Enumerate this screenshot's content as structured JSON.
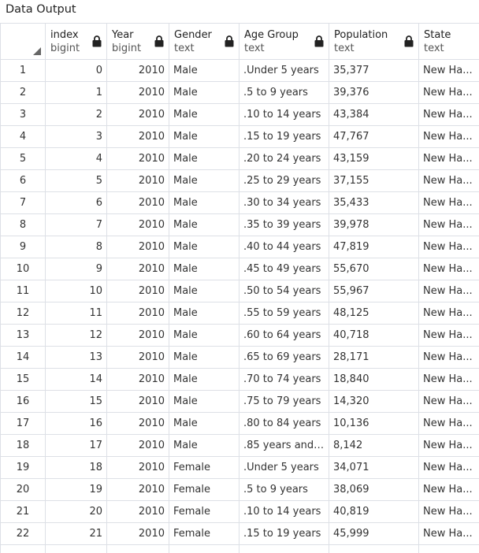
{
  "panel": {
    "title": "Data Output"
  },
  "columns": [
    {
      "name": "index",
      "type": "bigint"
    },
    {
      "name": "Year",
      "type": "bigint"
    },
    {
      "name": "Gender",
      "type": "text"
    },
    {
      "name": "Age Group",
      "type": "text"
    },
    {
      "name": "Population",
      "type": "text"
    },
    {
      "name": "State",
      "type": "text"
    }
  ],
  "rows": [
    [
      "1",
      "0",
      "2010",
      "Male",
      ".Under 5 years",
      "35,377",
      "New Ha..."
    ],
    [
      "2",
      "1",
      "2010",
      "Male",
      ".5 to 9 years",
      "39,376",
      "New Ha..."
    ],
    [
      "3",
      "2",
      "2010",
      "Male",
      ".10 to 14 years",
      "43,384",
      "New Ha..."
    ],
    [
      "4",
      "3",
      "2010",
      "Male",
      ".15 to 19 years",
      "47,767",
      "New Ha..."
    ],
    [
      "5",
      "4",
      "2010",
      "Male",
      ".20 to 24 years",
      "43,159",
      "New Ha..."
    ],
    [
      "6",
      "5",
      "2010",
      "Male",
      ".25 to 29 years",
      "37,155",
      "New Ha..."
    ],
    [
      "7",
      "6",
      "2010",
      "Male",
      ".30 to 34 years",
      "35,433",
      "New Ha..."
    ],
    [
      "8",
      "7",
      "2010",
      "Male",
      ".35 to 39 years",
      "39,978",
      "New Ha..."
    ],
    [
      "9",
      "8",
      "2010",
      "Male",
      ".40 to 44 years",
      "47,819",
      "New Ha..."
    ],
    [
      "10",
      "9",
      "2010",
      "Male",
      ".45 to 49 years",
      "55,670",
      "New Ha..."
    ],
    [
      "11",
      "10",
      "2010",
      "Male",
      ".50 to 54 years",
      "55,967",
      "New Ha..."
    ],
    [
      "12",
      "11",
      "2010",
      "Male",
      ".55 to 59 years",
      "48,125",
      "New Ha..."
    ],
    [
      "13",
      "12",
      "2010",
      "Male",
      ".60 to 64 years",
      "40,718",
      "New Ha..."
    ],
    [
      "14",
      "13",
      "2010",
      "Male",
      ".65 to 69 years",
      "28,171",
      "New Ha..."
    ],
    [
      "15",
      "14",
      "2010",
      "Male",
      ".70 to 74 years",
      "18,840",
      "New Ha..."
    ],
    [
      "16",
      "15",
      "2010",
      "Male",
      ".75 to 79 years",
      "14,320",
      "New Ha..."
    ],
    [
      "17",
      "16",
      "2010",
      "Male",
      ".80 to 84 years",
      "10,136",
      "New Ha..."
    ],
    [
      "18",
      "17",
      "2010",
      "Male",
      ".85 years and o...",
      "8,142",
      "New Ha..."
    ],
    [
      "19",
      "18",
      "2010",
      "Female",
      ".Under 5 years",
      "34,071",
      "New Ha..."
    ],
    [
      "20",
      "19",
      "2010",
      "Female",
      ".5 to 9 years",
      "38,069",
      "New Ha..."
    ],
    [
      "21",
      "20",
      "2010",
      "Female",
      ".10 to 14 years",
      "40,819",
      "New Ha..."
    ],
    [
      "22",
      "21",
      "2010",
      "Female",
      ".15 to 19 years",
      "45,999",
      "New Ha..."
    ]
  ]
}
